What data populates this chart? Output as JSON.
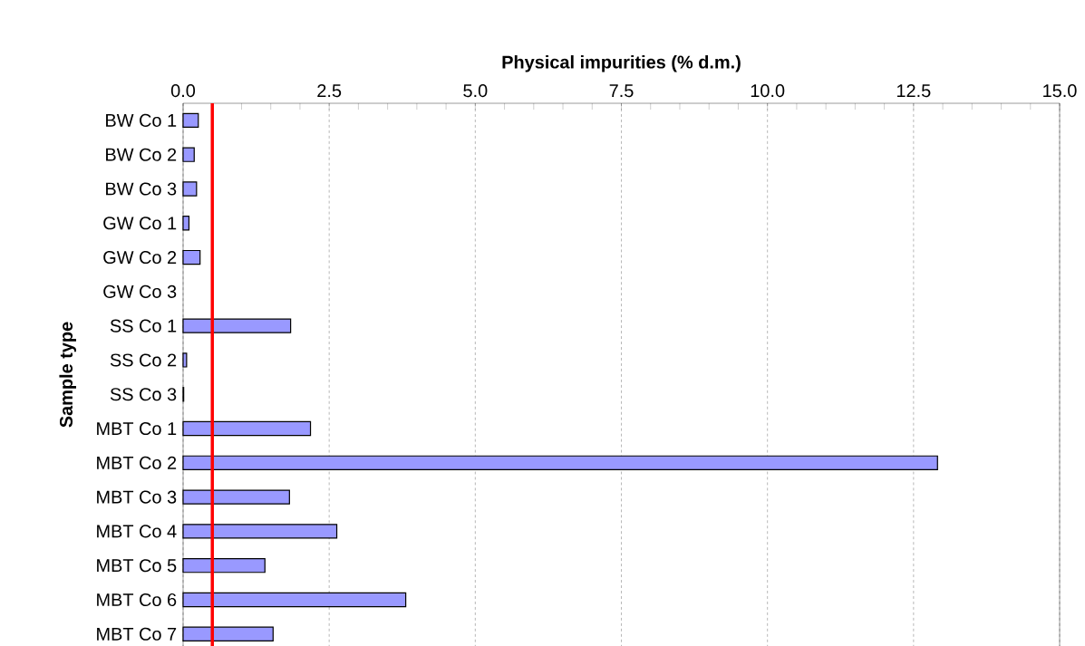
{
  "chart_data": {
    "type": "bar",
    "orientation": "horizontal",
    "xlabel": "Physical impurities (% d.m.)",
    "ylabel": "Sample type",
    "categories": [
      "BW Co 1",
      "BW Co 2",
      "BW Co 3",
      "GW Co 1",
      "GW Co 2",
      "GW Co 3",
      "SS Co 1",
      "SS Co 2",
      "SS Co 3",
      "MBT Co 1",
      "MBT Co 2",
      "MBT Co 3",
      "MBT Co 4",
      "MBT Co 5",
      "MBT Co 6",
      "MBT Co 7"
    ],
    "values": [
      0.26,
      0.19,
      0.23,
      0.1,
      0.29,
      null,
      1.84,
      0.06,
      0.01,
      2.18,
      12.91,
      1.82,
      2.63,
      1.4,
      3.81,
      1.54
    ],
    "color": "#9999ff",
    "xlim": [
      0,
      15
    ],
    "xticks": [
      {
        "value": 0,
        "label": "0.0"
      },
      {
        "value": 2.5,
        "label": "2.5"
      },
      {
        "value": 5,
        "label": "5.0"
      },
      {
        "value": 7.5,
        "label": "7.5"
      },
      {
        "value": 10,
        "label": "10.0"
      },
      {
        "value": 12.5,
        "label": "12.5"
      },
      {
        "value": 15,
        "label": "15.0"
      }
    ],
    "grid": "x",
    "ref_lines": [
      {
        "axis": "x",
        "value": 0.5,
        "color": "#ff0000"
      }
    ]
  }
}
